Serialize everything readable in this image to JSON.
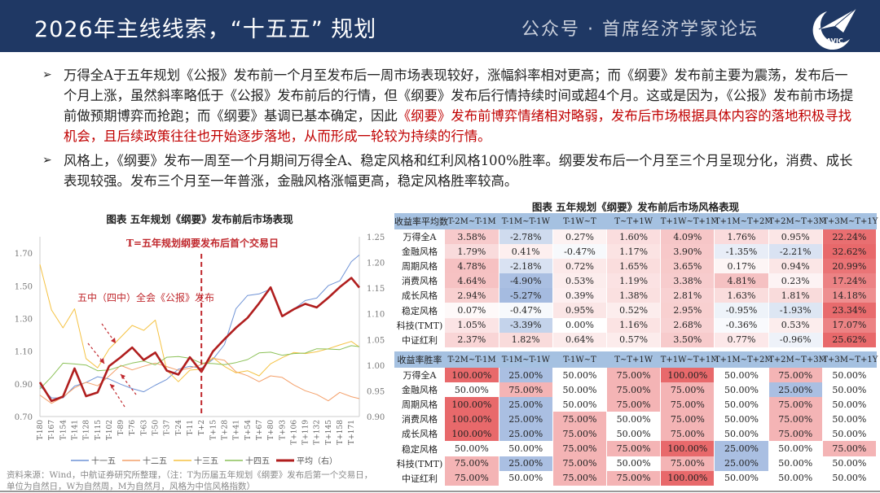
{
  "header": {
    "title": "2026年主线线索，“十五五” 规划"
  },
  "logo": {
    "text": "AVIC"
  },
  "bullets": [
    {
      "normal": "万得全A于五年规划《公报》发布前一个月至发布后一周市场表现较好，涨幅斜率相对更高；而《纲要》发布前主要为震荡，发布后一个月上涨，虽然斜率略低于《公报》发布前后的行情，但《纲要》发布后行情持续时间或超4个月。这或是因为，《公报》发布前市场提前做预期博弈而抢跑；而《纲要》基调已基本确定，因此",
      "red": "《纲要》发布前博弈情绪相对略弱，发布后市场根据具体内容的落地积极寻找机会，且后续政策往往也开始逐步落地，从而形成一轮较为持续的行情。"
    },
    {
      "normal": "风格上，《纲要》发布一周至一个月期间万得全A、稳定风格和红利风格100%胜率。纲要发布后一个月至三个月呈现分化，消费、成长表现较强。发布三个月至一年普涨，金融风格涨幅更高，稳定风格胜率较高。",
      "red": ""
    }
  ],
  "chart_data": {
    "type": "line",
    "title": "图表 五年规划《纲要》发布前后市场表现",
    "x_tick_labels": [
      "T-180",
      "T-167",
      "T-154",
      "T-141",
      "T-128",
      "T-115",
      "T-102",
      "T-89",
      "T-76",
      "T-63",
      "T-50",
      "T-37",
      "T-24",
      "T-11",
      "T+2",
      "T+15",
      "T+28",
      "T+41",
      "T+54",
      "T+67",
      "T+80",
      "T+93",
      "T+106",
      "T+119",
      "T+132",
      "T+145",
      "T+158",
      "T+171"
    ],
    "x_days": [
      -180,
      -167,
      -154,
      -141,
      -128,
      -115,
      -102,
      -89,
      -76,
      -63,
      -50,
      -37,
      -24,
      -11,
      2,
      15,
      28,
      41,
      54,
      67,
      80,
      93,
      106,
      119,
      132,
      145,
      158,
      171,
      180
    ],
    "y_left": {
      "ticks": [
        "0.70",
        "0.90",
        "1.10",
        "1.30",
        "1.50",
        "1.70"
      ],
      "lim": [
        0.7,
        1.8
      ]
    },
    "y_right": {
      "ticks": [
        "0.90",
        "0.95",
        "1.00",
        "1.05",
        "1.10",
        "1.15",
        "1.20",
        "1.25"
      ],
      "lim": [
        0.9,
        1.25
      ]
    },
    "series": [
      {
        "name": "十一五",
        "axis": "left",
        "color": "#6f93d6",
        "values": [
          0.887,
          0.82,
          0.82,
          0.887,
          0.903,
          0.937,
          0.928,
          0.903,
          0.878,
          0.853,
          0.887,
          0.92,
          0.987,
          1.012,
          1.003,
          1.053,
          1.137,
          1.353,
          1.437,
          1.453,
          1.487,
          1.32,
          1.353,
          1.403,
          1.42,
          1.503,
          1.537,
          1.653,
          1.687
        ]
      },
      {
        "name": "十二五",
        "axis": "left",
        "color": "#f4a06a",
        "values": [
          0.837,
          0.787,
          0.82,
          0.87,
          0.903,
          0.887,
          0.953,
          1.02,
          0.987,
          1.003,
          1.02,
          1.003,
          0.987,
          1.003,
          1.02,
          1.053,
          1.037,
          0.97,
          0.953,
          0.92,
          0.953,
          0.937,
          0.887,
          0.853,
          0.837,
          0.803,
          0.853,
          0.82,
          0.803
        ]
      },
      {
        "name": "十三五",
        "axis": "left",
        "color": "#f5c242",
        "values": [
          1.637,
          1.353,
          1.237,
          1.353,
          1.053,
          1.003,
          1.12,
          1.187,
          1.253,
          1.22,
          1.287,
          0.987,
          0.92,
          0.987,
          0.987,
          1.053,
          1.003,
          0.97,
          0.987,
          0.953,
          1.02,
          1.053,
          1.087,
          1.087,
          1.103,
          1.12,
          1.137,
          1.153,
          1.12
        ]
      },
      {
        "name": "十四五",
        "axis": "left",
        "color": "#8cc158",
        "values": [
          0.87,
          0.937,
          1.02,
          1.02,
          1.02,
          0.987,
          0.987,
          1.003,
          1.02,
          1.037,
          1.02,
          1.07,
          1.07,
          1.053,
          1.02,
          1.02,
          1.02,
          1.037,
          1.053,
          1.087,
          1.087,
          1.07,
          1.087,
          1.095,
          1.12,
          1.112,
          1.103,
          1.128,
          1.128
        ]
      },
      {
        "name": "平均（右）",
        "axis": "right",
        "color": "#b01e1e",
        "values": [
          0.964,
          0.927,
          0.938,
          0.996,
          0.943,
          0.948,
          0.996,
          1.012,
          1.033,
          1.012,
          1.028,
          0.991,
          0.98,
          1.012,
          0.985,
          1.028,
          1.054,
          1.075,
          1.091,
          1.117,
          1.149,
          1.096,
          1.112,
          1.122,
          1.112,
          1.128,
          1.149,
          1.17,
          1.154
        ]
      }
    ],
    "annotations": {
      "t_line_label": "T=五年规划纲要发布后首个交易日",
      "t_line_day": 2,
      "plenum_label": "五中（四中）全会《公报》发布"
    },
    "legend_position": "bottom"
  },
  "table1": {
    "title": "图表 五年规划《纲要》发布前后市场风格表现",
    "header": [
      "收益率平均数",
      "T-2M~T-1M",
      "T-1M~T-1W",
      "T-1W~T",
      "T~T+1W",
      "T+1W~T+1M",
      "T+1M~T+2M",
      "T+2M~T+3M",
      "T+3M~T+1Y"
    ],
    "rows": [
      [
        "万得全A",
        "3.58%",
        "-2.78%",
        "0.27%",
        "1.60%",
        "4.09%",
        "1.76%",
        "0.95%",
        "22.24%"
      ],
      [
        "金融风格",
        "1.79%",
        "0.41%",
        "-0.47%",
        "1.17%",
        "3.90%",
        "-1.35%",
        "-2.21%",
        "32.62%"
      ],
      [
        "周期风格",
        "4.78%",
        "-2.18%",
        "0.72%",
        "1.65%",
        "3.65%",
        "0.17%",
        "0.94%",
        "20.99%"
      ],
      [
        "消费风格",
        "4.64%",
        "-4.90%",
        "0.53%",
        "1.19%",
        "3.38%",
        "4.81%",
        "0.23%",
        "17.24%"
      ],
      [
        "成长风格",
        "2.94%",
        "-5.27%",
        "0.39%",
        "1.38%",
        "2.81%",
        "1.63%",
        "1.81%",
        "14.18%"
      ],
      [
        "稳定风格",
        "0.07%",
        "-0.47%",
        "0.95%",
        "0.52%",
        "2.95%",
        "-0.95%",
        "-1.93%",
        "23.34%"
      ],
      [
        "科技(TMT)",
        "1.05%",
        "-3.39%",
        "0.00%",
        "1.16%",
        "2.68%",
        "-0.36%",
        "0.53%",
        "17.07%"
      ],
      [
        "中证红利",
        "2.37%",
        "1.82%",
        "0.64%",
        "0.57%",
        "3.50%",
        "0.77%",
        "-0.96%",
        "25.62%"
      ]
    ]
  },
  "table2": {
    "header": [
      "收益率胜率",
      "T-2M~T-1M",
      "T-1M~T-1W",
      "T-1W~T",
      "T~T+1W",
      "T+1W~T+1M",
      "T+1M~T+2M",
      "T+2M~T+3M",
      "T+3M~T+1Y"
    ],
    "rows": [
      [
        "万得全A",
        "100.00%",
        "25.00%",
        "50.00%",
        "75.00%",
        "100.00%",
        "50.00%",
        "75.00%",
        "50.00%"
      ],
      [
        "金融风格",
        "50.00%",
        "75.00%",
        "50.00%",
        "75.00%",
        "75.00%",
        "50.00%",
        "25.00%",
        "50.00%"
      ],
      [
        "周期风格",
        "100.00%",
        "25.00%",
        "50.00%",
        "75.00%",
        "75.00%",
        "50.00%",
        "75.00%",
        "50.00%"
      ],
      [
        "消费风格",
        "100.00%",
        "25.00%",
        "75.00%",
        "50.00%",
        "75.00%",
        "50.00%",
        "75.00%",
        "50.00%"
      ],
      [
        "成长风格",
        "100.00%",
        "25.00%",
        "75.00%",
        "50.00%",
        "75.00%",
        "50.00%",
        "75.00%",
        "50.00%"
      ],
      [
        "稳定风格",
        "50.00%",
        "50.00%",
        "75.00%",
        "75.00%",
        "100.00%",
        "25.00%",
        "50.00%",
        "75.00%"
      ],
      [
        "科技(TMT)",
        "75.00%",
        "25.00%",
        "75.00%",
        "50.00%",
        "75.00%",
        "25.00%",
        "50.00%",
        "50.00%"
      ],
      [
        "中证红利",
        "75.00%",
        "50.00%",
        "75.00%",
        "75.00%",
        "100.00%",
        "50.00%",
        "50.00%",
        "50.00%"
      ]
    ]
  },
  "colors": {
    "header_bg": "#1f3864",
    "table_header": "#a5c1e1",
    "pos": "#e8696b",
    "neg": "#8eaad8",
    "accent_red": "#c00000"
  },
  "source": {
    "line1": "资料来源：Wind，中航证券研究所整理，（注：T为历届五年规划《纲要》发布后第一个交易日，",
    "line2": "单位为自然日，W为自然周，M为自然月，风格为中信风格指数）"
  },
  "watermark": "公众号 · 首席经济学家论坛"
}
